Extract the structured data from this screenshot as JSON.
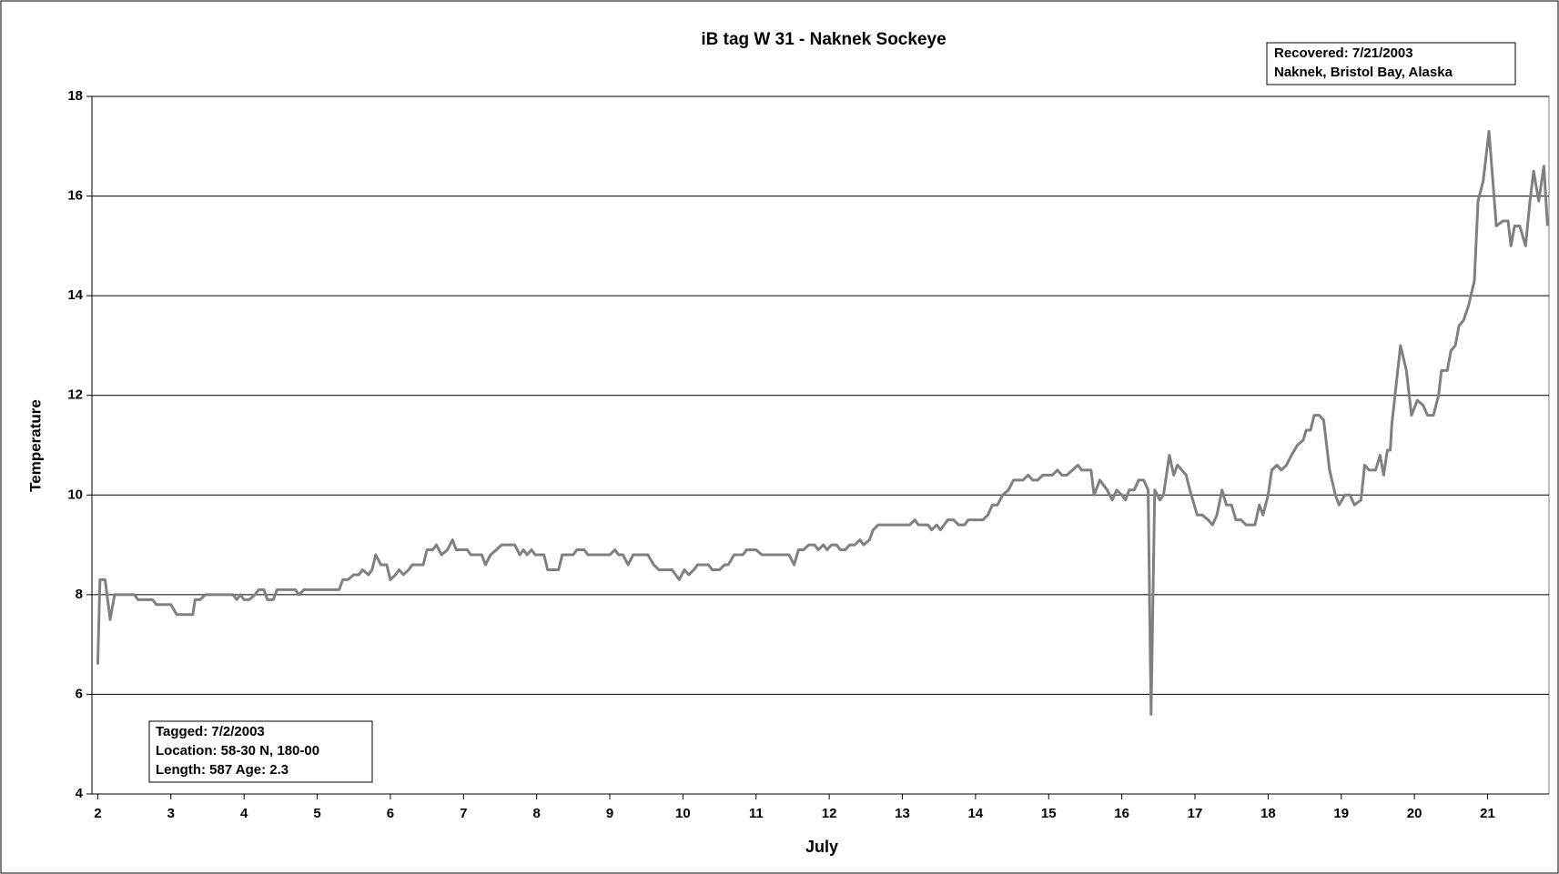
{
  "chart_data": {
    "type": "line",
    "title": "iB tag W 31 - Naknek Sockeye",
    "x_label": "July",
    "y_label": "Temperature",
    "annotations": [
      [
        "Recovered: 7/21/2003",
        "Naknek, Bristol Bay, Alaska"
      ],
      [
        "Tagged: 7/2/2003",
        "Location: 58-30 N, 180-00",
        "Length:  587   Age:  2.3"
      ]
    ],
    "xlim": [
      1.92,
      21.84
    ],
    "xticks": [
      2,
      3,
      4,
      5,
      6,
      7,
      8,
      9,
      10,
      11,
      12,
      13,
      14,
      15,
      16,
      17,
      18,
      19,
      20,
      21
    ],
    "ylim": [
      4,
      18
    ],
    "yticks": [
      4,
      6,
      8,
      10,
      12,
      14,
      16,
      18
    ],
    "grid": true,
    "series": [
      {
        "color": "#808080",
        "x": [
          2.0,
          2.03,
          2.1,
          2.17,
          2.23,
          2.5,
          2.55,
          2.75,
          2.8,
          3.0,
          3.08,
          3.3,
          3.33,
          3.4,
          3.47,
          3.85,
          3.9,
          3.95,
          4.0,
          4.07,
          4.15,
          4.2,
          4.27,
          4.32,
          4.4,
          4.45,
          4.7,
          4.75,
          4.82,
          5.3,
          5.35,
          5.42,
          5.5,
          5.57,
          5.62,
          5.7,
          5.75,
          5.8,
          5.87,
          5.95,
          6.0,
          6.07,
          6.12,
          6.18,
          6.25,
          6.3,
          6.45,
          6.5,
          6.58,
          6.63,
          6.7,
          6.78,
          6.85,
          6.9,
          7.05,
          7.1,
          7.25,
          7.3,
          7.37,
          7.45,
          7.52,
          7.7,
          7.77,
          7.82,
          7.87,
          7.93,
          7.98,
          8.1,
          8.15,
          8.3,
          8.35,
          8.5,
          8.55,
          8.65,
          8.7,
          9.0,
          9.07,
          9.12,
          9.18,
          9.25,
          9.32,
          9.52,
          9.6,
          9.67,
          9.85,
          9.95,
          10.02,
          10.08,
          10.15,
          10.2,
          10.35,
          10.4,
          10.5,
          10.57,
          10.62,
          10.7,
          10.82,
          10.87,
          11.0,
          11.08,
          11.45,
          11.52,
          11.58,
          11.65,
          11.72,
          11.8,
          11.85,
          11.92,
          11.97,
          12.03,
          12.1,
          12.15,
          12.22,
          12.28,
          12.35,
          12.42,
          12.47,
          12.55,
          12.6,
          12.67,
          13.1,
          13.17,
          13.22,
          13.35,
          13.4,
          13.47,
          13.52,
          13.62,
          13.7,
          13.77,
          13.85,
          13.9,
          14.1,
          14.17,
          14.23,
          14.3,
          14.37,
          14.45,
          14.52,
          14.65,
          14.72,
          14.78,
          14.85,
          14.92,
          15.05,
          15.12,
          15.18,
          15.25,
          15.4,
          15.45,
          15.58,
          15.62,
          15.7,
          15.8,
          15.87,
          15.93,
          16.0,
          16.05,
          16.1,
          16.17,
          16.23,
          16.3,
          16.36,
          16.4,
          16.45,
          16.52,
          16.57,
          16.65,
          16.71,
          16.76,
          16.88,
          16.93,
          17.03,
          17.1,
          17.18,
          17.24,
          17.3,
          17.37,
          17.43,
          17.5,
          17.56,
          17.63,
          17.7,
          17.82,
          17.88,
          17.93,
          18.0,
          18.05,
          18.12,
          18.18,
          18.25,
          18.32,
          18.4,
          18.48,
          18.52,
          18.58,
          18.63,
          18.7,
          18.76,
          18.84,
          18.92,
          18.97,
          19.05,
          19.12,
          19.18,
          19.27,
          19.32,
          19.38,
          19.47,
          19.53,
          19.58,
          19.63,
          19.67,
          19.69,
          19.81,
          19.89,
          19.96,
          20.04,
          20.12,
          20.18,
          20.26,
          20.33,
          20.37,
          20.45,
          20.5,
          20.56,
          20.61,
          20.67,
          20.74,
          20.82,
          20.87,
          20.94,
          21.02,
          21.12,
          21.21,
          21.28,
          21.32,
          21.37,
          21.44,
          21.52,
          21.58,
          21.63,
          21.7,
          21.77,
          21.82
        ],
        "values": [
          6.6,
          8.3,
          8.3,
          7.5,
          8.0,
          8.0,
          7.9,
          7.9,
          7.8,
          7.8,
          7.6,
          7.6,
          7.9,
          7.9,
          8.0,
          8.0,
          7.9,
          8.0,
          7.9,
          7.9,
          8.0,
          8.1,
          8.1,
          7.9,
          7.9,
          8.1,
          8.1,
          8.0,
          8.1,
          8.1,
          8.3,
          8.3,
          8.4,
          8.4,
          8.5,
          8.4,
          8.5,
          8.8,
          8.6,
          8.6,
          8.3,
          8.4,
          8.5,
          8.4,
          8.5,
          8.6,
          8.6,
          8.9,
          8.9,
          9.0,
          8.8,
          8.9,
          9.1,
          8.9,
          8.9,
          8.8,
          8.8,
          8.6,
          8.8,
          8.9,
          9.0,
          9.0,
          8.8,
          8.9,
          8.8,
          8.9,
          8.8,
          8.8,
          8.5,
          8.5,
          8.8,
          8.8,
          8.9,
          8.9,
          8.8,
          8.8,
          8.9,
          8.8,
          8.8,
          8.6,
          8.8,
          8.8,
          8.6,
          8.5,
          8.5,
          8.3,
          8.5,
          8.4,
          8.5,
          8.6,
          8.6,
          8.5,
          8.5,
          8.6,
          8.6,
          8.8,
          8.8,
          8.9,
          8.9,
          8.8,
          8.8,
          8.6,
          8.9,
          8.9,
          9.0,
          9.0,
          8.9,
          9.0,
          8.9,
          9.0,
          9.0,
          8.9,
          8.9,
          9.0,
          9.0,
          9.1,
          9.0,
          9.1,
          9.3,
          9.4,
          9.4,
          9.5,
          9.4,
          9.4,
          9.3,
          9.4,
          9.3,
          9.5,
          9.5,
          9.4,
          9.4,
          9.5,
          9.5,
          9.6,
          9.8,
          9.8,
          10.0,
          10.1,
          10.3,
          10.3,
          10.4,
          10.3,
          10.3,
          10.4,
          10.4,
          10.5,
          10.4,
          10.4,
          10.6,
          10.5,
          10.5,
          10.0,
          10.3,
          10.1,
          9.9,
          10.1,
          10.0,
          9.9,
          10.1,
          10.1,
          10.3,
          10.3,
          10.1,
          5.6,
          10.1,
          9.9,
          10.0,
          10.8,
          10.4,
          10.6,
          10.4,
          10.1,
          9.6,
          9.6,
          9.5,
          9.4,
          9.6,
          10.1,
          9.8,
          9.8,
          9.5,
          9.5,
          9.4,
          9.4,
          9.8,
          9.6,
          10.0,
          10.5,
          10.6,
          10.5,
          10.6,
          10.8,
          11.0,
          11.1,
          11.3,
          11.3,
          11.6,
          11.6,
          11.5,
          10.5,
          10.0,
          9.8,
          10.0,
          10.0,
          9.8,
          9.9,
          10.6,
          10.5,
          10.5,
          10.8,
          10.4,
          10.9,
          10.9,
          11.4,
          13.0,
          12.5,
          11.6,
          11.9,
          11.8,
          11.6,
          11.6,
          12.0,
          12.5,
          12.5,
          12.9,
          13.0,
          13.4,
          13.5,
          13.8,
          14.3,
          15.9,
          16.3,
          17.3,
          15.4,
          15.5,
          15.5,
          15.0,
          15.4,
          15.4,
          15.0,
          15.9,
          16.5,
          15.9,
          16.6,
          15.4
        ]
      }
    ]
  }
}
